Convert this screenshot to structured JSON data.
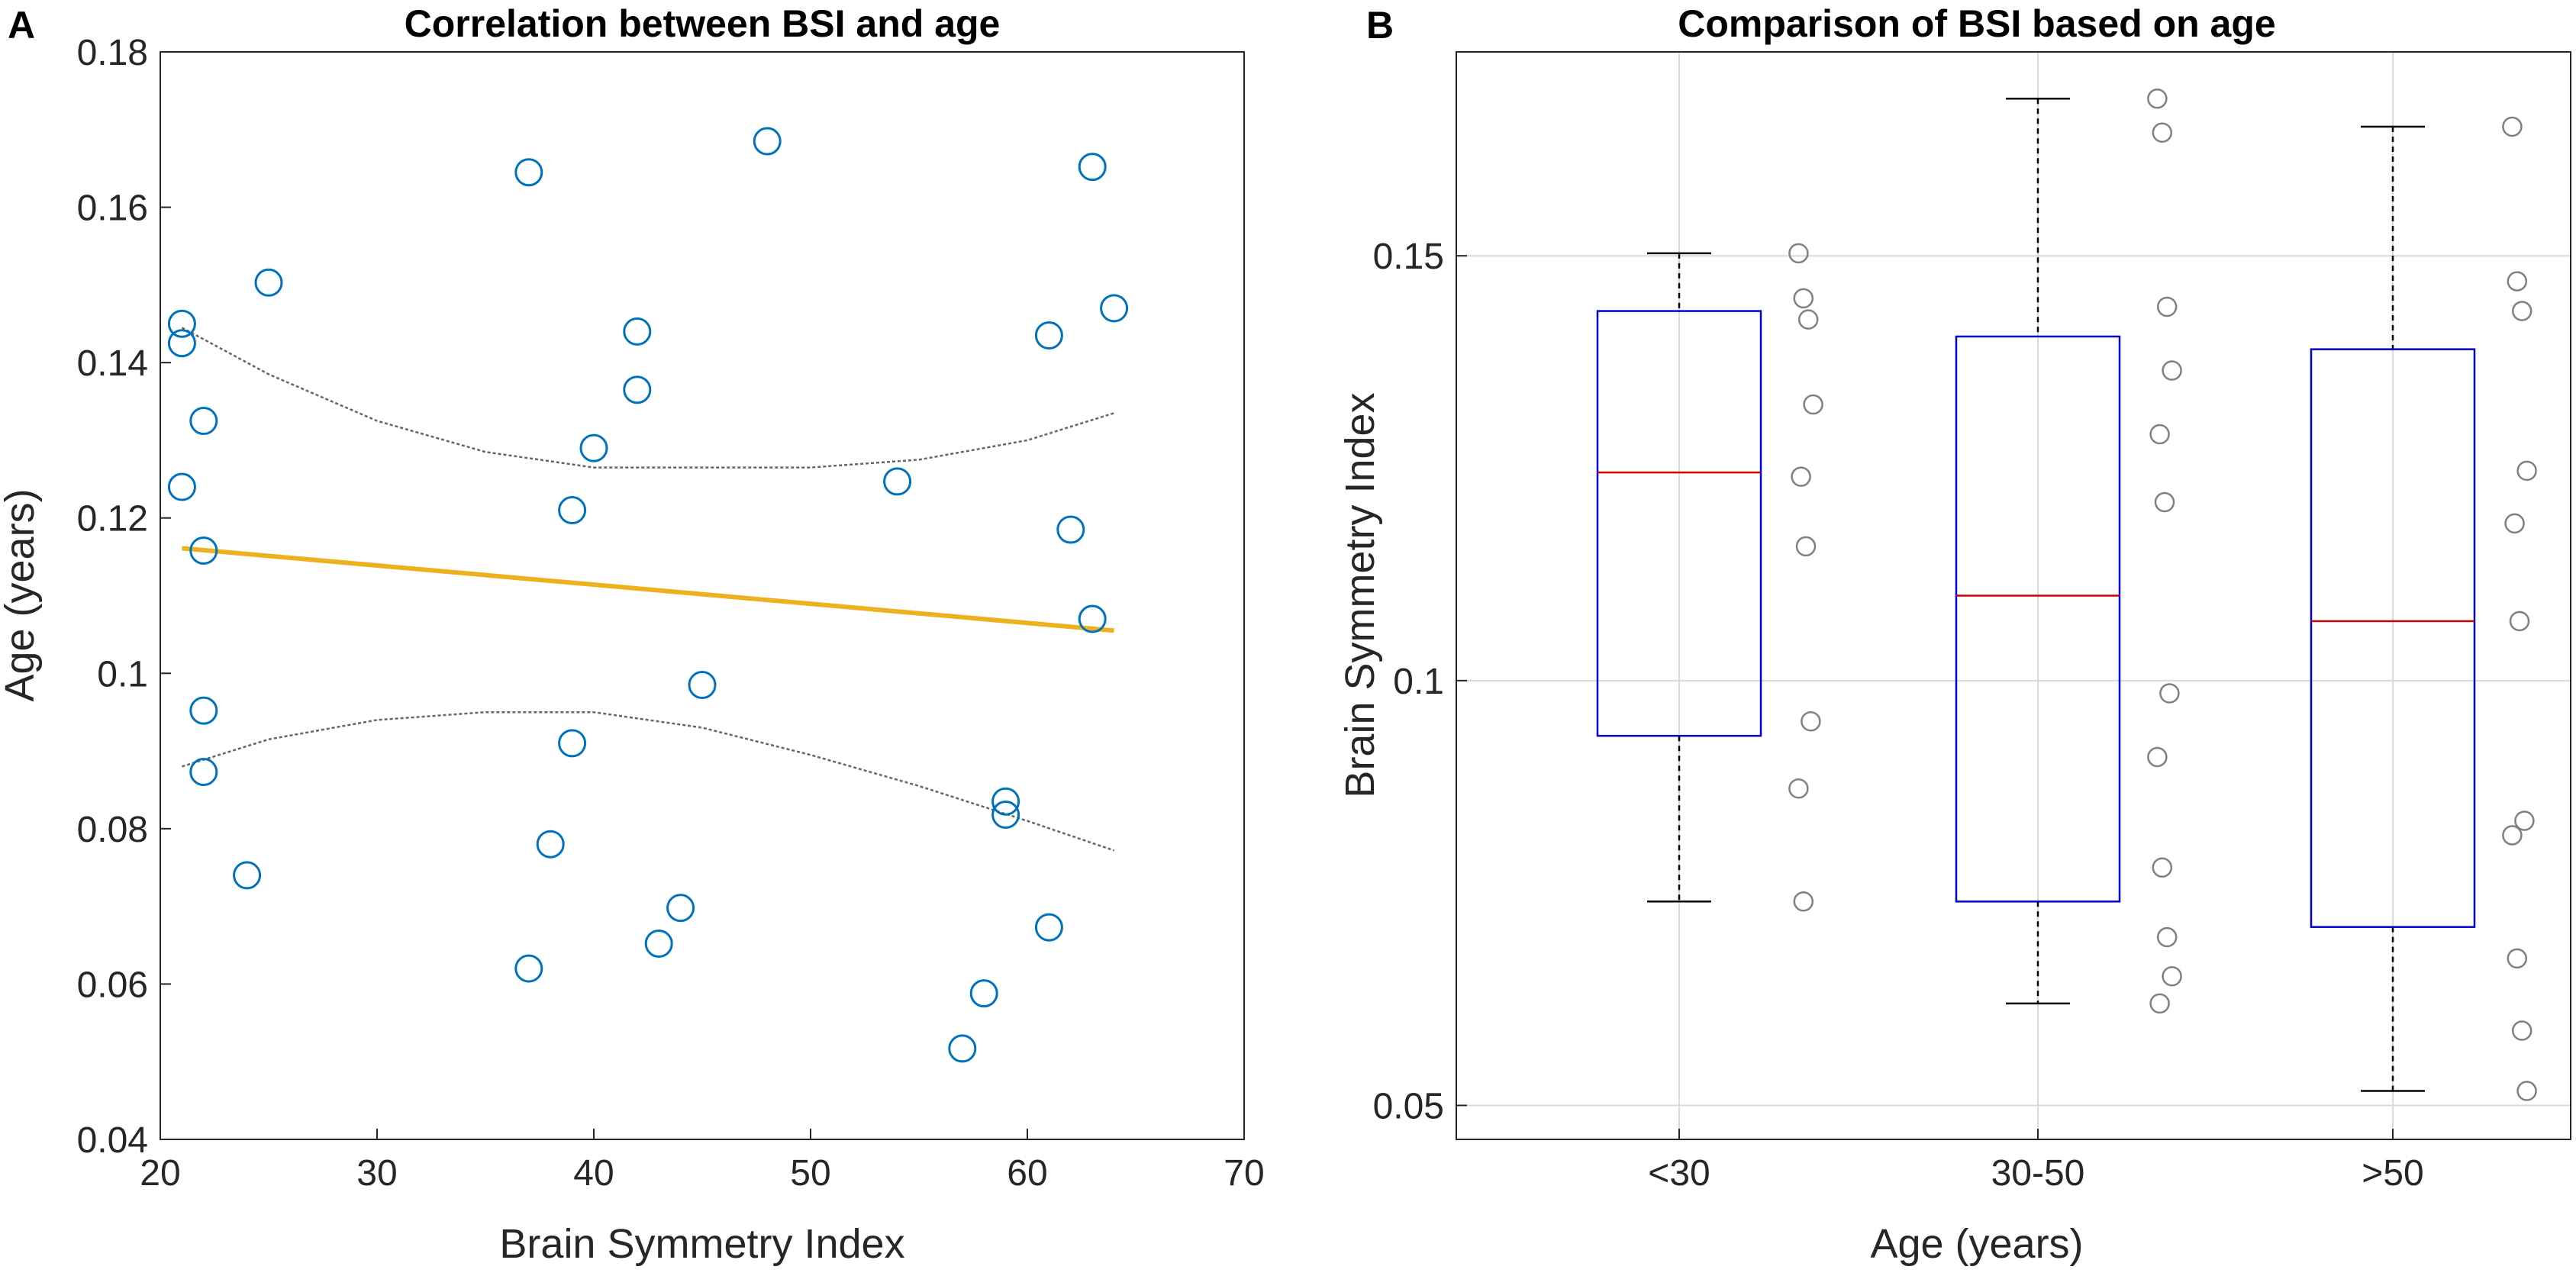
{
  "chart_data": [
    {
      "type": "scatter",
      "panel_label": "A",
      "title": "Correlation between BSI and age",
      "xlabel": "Brain Symmetry Index",
      "ylabel": "Age (years)",
      "xlim": [
        20,
        70
      ],
      "ylim": [
        0.04,
        0.18
      ],
      "xticks": [
        20,
        30,
        40,
        50,
        60,
        70
      ],
      "yticks": [
        0.04,
        0.06,
        0.08,
        0.1,
        0.12,
        0.14,
        0.16,
        0.18
      ],
      "ytick_labels": [
        "0.04",
        "0.06",
        "0.08",
        "0.1",
        "0.12",
        "0.14",
        "0.16",
        "0.18"
      ],
      "grid": false,
      "points": [
        [
          21,
          0.145
        ],
        [
          21,
          0.1425
        ],
        [
          21,
          0.124
        ],
        [
          22,
          0.1325
        ],
        [
          22,
          0.1158
        ],
        [
          22,
          0.0952
        ],
        [
          22,
          0.0873
        ],
        [
          24,
          0.074
        ],
        [
          25,
          0.1503
        ],
        [
          37,
          0.1645
        ],
        [
          37,
          0.062
        ],
        [
          38,
          0.078
        ],
        [
          39,
          0.121
        ],
        [
          39,
          0.091
        ],
        [
          40,
          0.129
        ],
        [
          42,
          0.144
        ],
        [
          42,
          0.1365
        ],
        [
          43,
          0.0652
        ],
        [
          44,
          0.0698
        ],
        [
          45,
          0.0985
        ],
        [
          48,
          0.1685
        ],
        [
          54,
          0.1247
        ],
        [
          57,
          0.0517
        ],
        [
          58,
          0.0588
        ],
        [
          59,
          0.0835
        ],
        [
          59,
          0.0818
        ],
        [
          61,
          0.1435
        ],
        [
          61,
          0.0673
        ],
        [
          62,
          0.1185
        ],
        [
          63,
          0.1652
        ],
        [
          63,
          0.107
        ],
        [
          64,
          0.147
        ]
      ],
      "fit_line": {
        "x": [
          21,
          64
        ],
        "y": [
          0.1161,
          0.1055
        ],
        "color": "#EDB120"
      },
      "confidence_band": {
        "upper": [
          [
            21,
            0.1445
          ],
          [
            25,
            0.1385
          ],
          [
            30,
            0.1325
          ],
          [
            35,
            0.1285
          ],
          [
            40,
            0.1265
          ],
          [
            45,
            0.1265
          ],
          [
            50,
            0.1265
          ],
          [
            55,
            0.1275
          ],
          [
            60,
            0.13
          ],
          [
            64,
            0.1335
          ]
        ],
        "lower": [
          [
            21,
            0.088
          ],
          [
            25,
            0.0915
          ],
          [
            30,
            0.094
          ],
          [
            35,
            0.095
          ],
          [
            40,
            0.095
          ],
          [
            45,
            0.093
          ],
          [
            50,
            0.0895
          ],
          [
            55,
            0.0855
          ],
          [
            60,
            0.081
          ],
          [
            64,
            0.0772
          ]
        ],
        "color": "#666666"
      },
      "marker_color": "#0072BD"
    },
    {
      "type": "box",
      "panel_label": "B",
      "title": "Comparison of BSI based on age",
      "xlabel": "Age (years)",
      "ylabel": "Brain Symmetry Index",
      "categories": [
        "<30",
        "30-50",
        ">50"
      ],
      "ylim": [
        0.046,
        0.174
      ],
      "yticks": [
        0.05,
        0.1,
        0.15
      ],
      "ytick_labels": [
        "0.05",
        "0.1",
        "0.15"
      ],
      "grid": true,
      "boxes": [
        {
          "category": "<30",
          "whisker_low": 0.074,
          "q1": 0.0935,
          "median": 0.1245,
          "q3": 0.1435,
          "whisker_high": 0.1503
        },
        {
          "category": "30-50",
          "whisker_low": 0.062,
          "q1": 0.074,
          "median": 0.11,
          "q3": 0.1405,
          "whisker_high": 0.1685
        },
        {
          "category": ">50",
          "whisker_low": 0.0517,
          "q1": 0.071,
          "median": 0.107,
          "q3": 0.139,
          "whisker_high": 0.1652
        }
      ],
      "jitter_points": [
        {
          "category": "<30",
          "values": [
            0.1503,
            0.145,
            0.1425,
            0.1325,
            0.124,
            0.1158,
            0.0952,
            0.0873,
            0.074
          ]
        },
        {
          "category": "30-50",
          "values": [
            0.1685,
            0.1645,
            0.144,
            0.1365,
            0.129,
            0.121,
            0.0985,
            0.091,
            0.078,
            0.0698,
            0.0652,
            0.062
          ]
        },
        {
          "category": ">50",
          "values": [
            0.1652,
            0.147,
            0.1435,
            0.1247,
            0.1185,
            0.107,
            0.0835,
            0.0818,
            0.0673,
            0.0588,
            0.0517
          ]
        }
      ],
      "box_color": "#0000CC",
      "median_color": "#CC0000",
      "point_color": "#808080"
    }
  ]
}
